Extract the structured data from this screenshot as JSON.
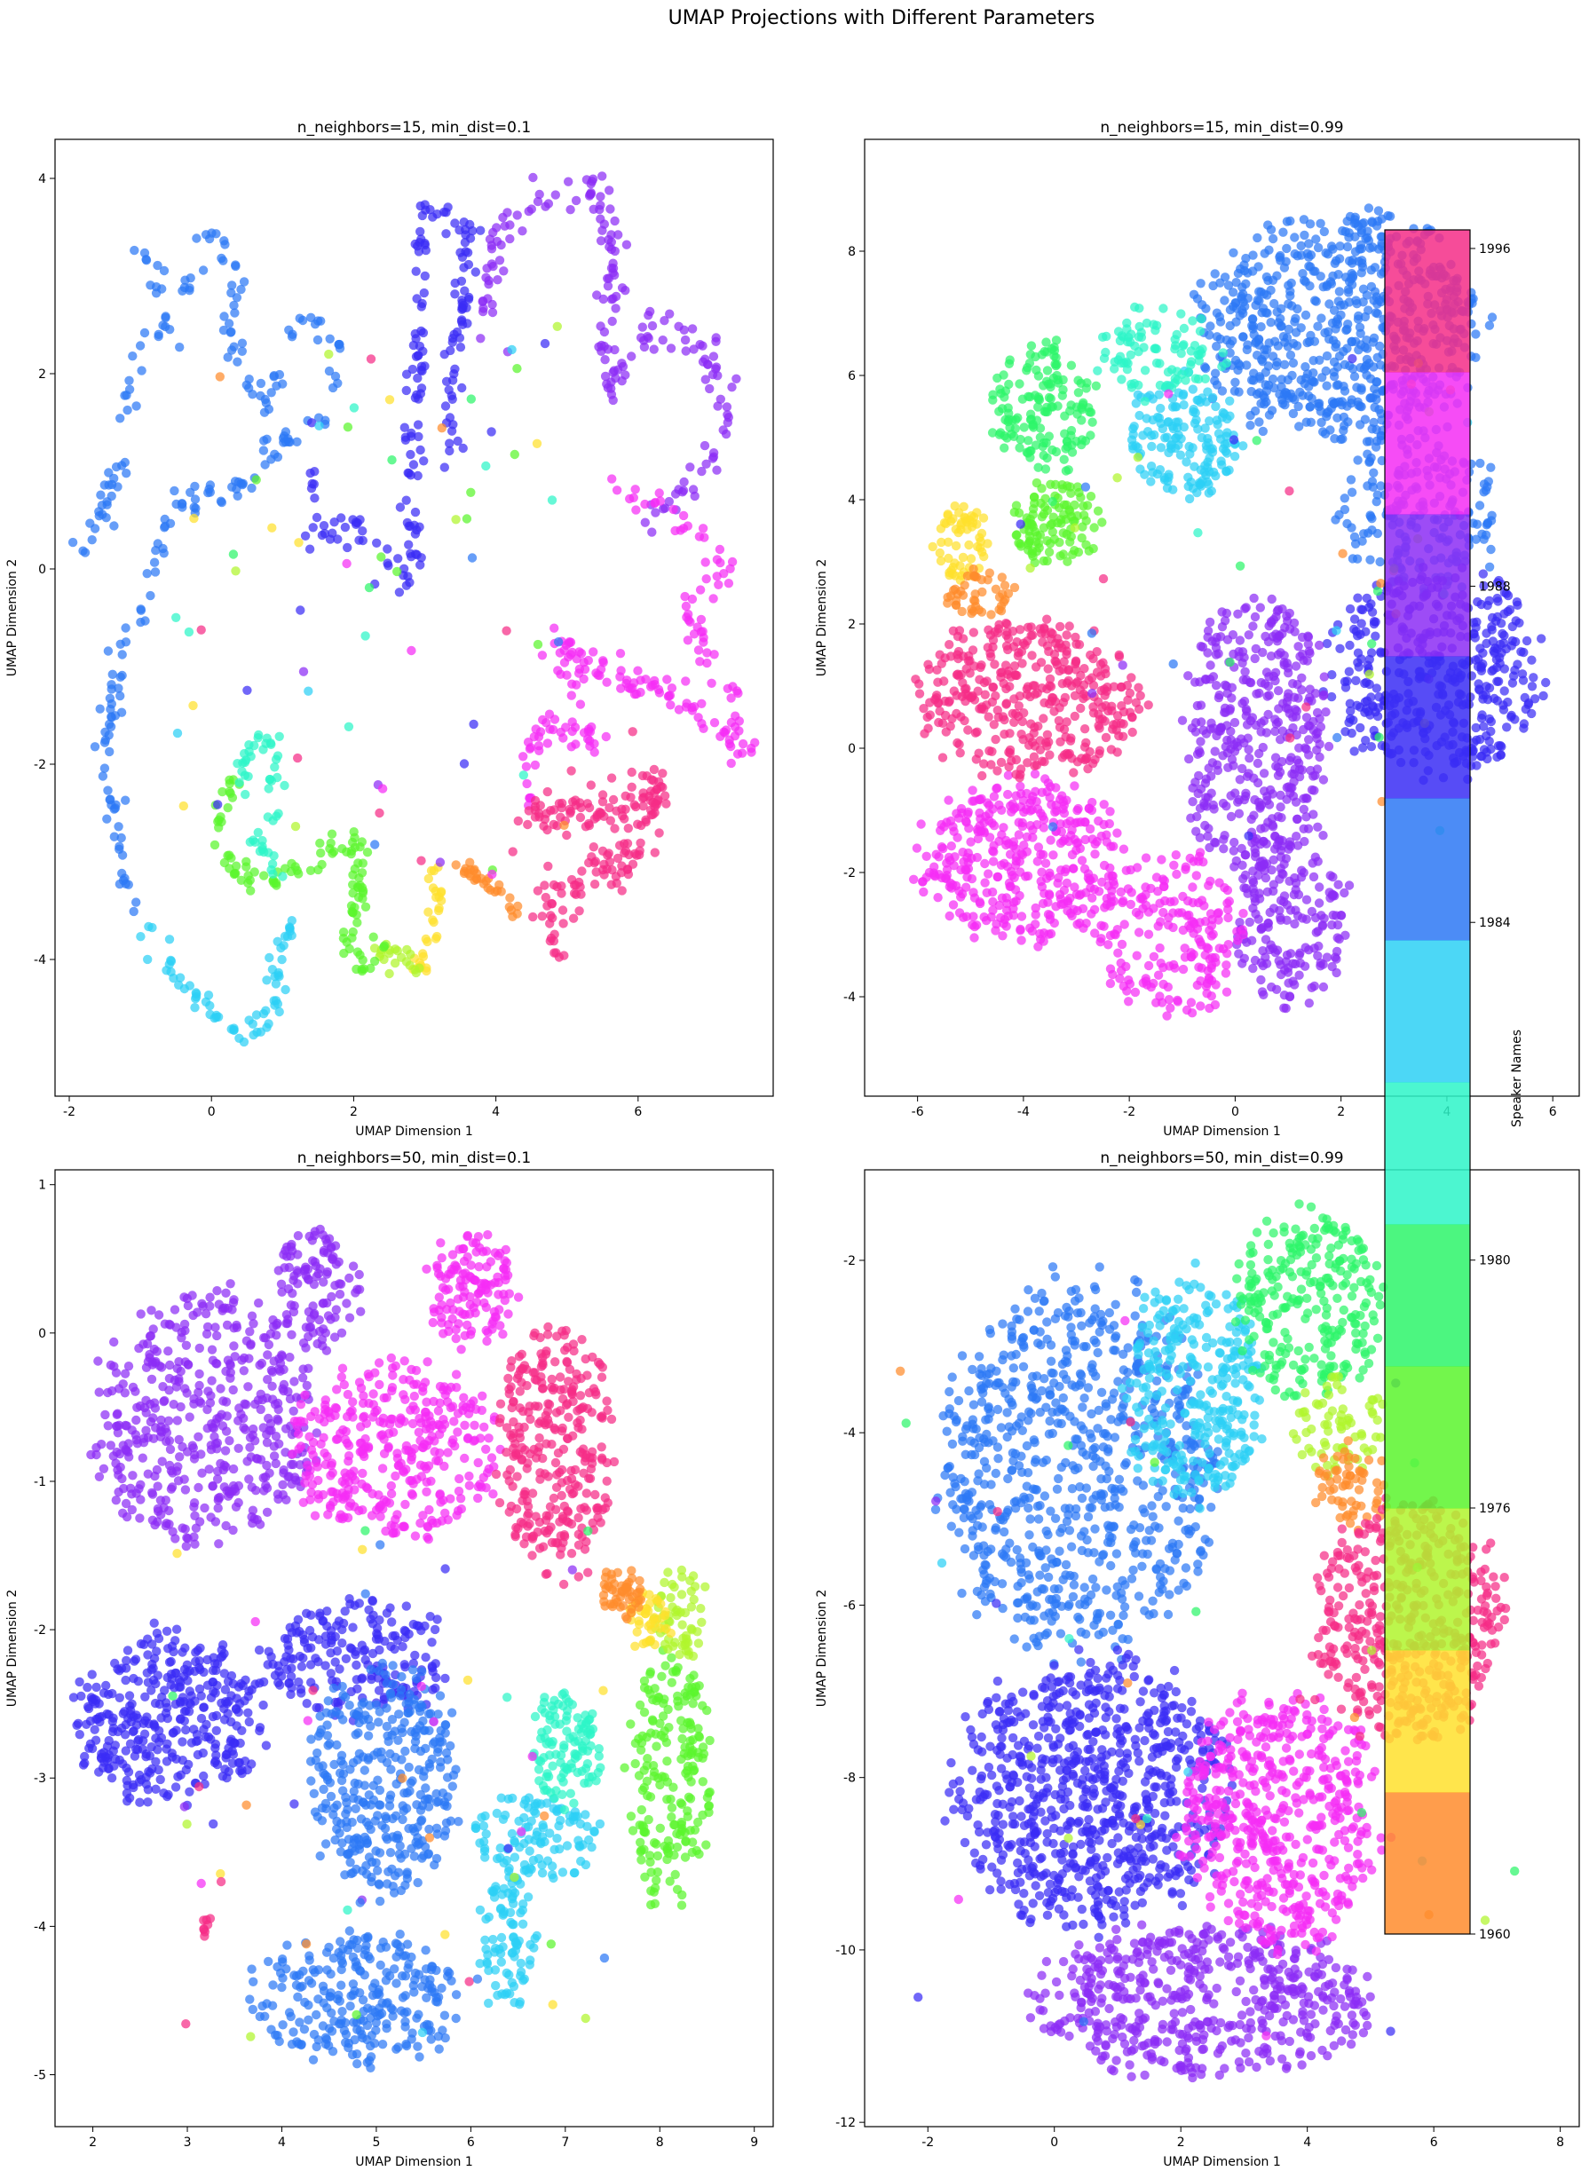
{
  "figure_title": "UMAP Projections with Different Parameters",
  "colors": {
    "c1960": "#ff8c2d",
    "c1964": "#ffe02d",
    "c1968": "#b0f52d",
    "c1972": "#5af52d",
    "c1976": "#2df56a",
    "c1980": "#2df5c8",
    "c1984": "#2dd0f5",
    "c1986": "#2d78f5",
    "c1988": "#3a2df5",
    "c1990": "#8c2df5",
    "c1994": "#f52df5",
    "c1998": "#f52d87"
  },
  "colorbar": {
    "label": "Speaker Names",
    "bins": [
      "#ff8c2d",
      "#ffe02d",
      "#b0f52d",
      "#5af52d",
      "#2df56a",
      "#2df5c8",
      "#2dd0f5",
      "#2d78f5",
      "#3a2df5",
      "#8c2df5",
      "#f52df5",
      "#f52d87"
    ],
    "ticks": [
      {
        "label": "1960",
        "frac": 0.0
      },
      {
        "label": "1976",
        "frac": 0.275
      },
      {
        "label": "1980",
        "frac": 0.435
      },
      {
        "label": "1984",
        "frac": 0.653
      },
      {
        "label": "1988",
        "frac": 0.87
      },
      {
        "label": "1996",
        "frac": 1.088
      }
    ]
  },
  "chart_data": [
    {
      "type": "scatter",
      "title": "n_neighbors=15, min_dist=0.1",
      "xlabel": "UMAP Dimension 1",
      "ylabel": "UMAP Dimension 2",
      "xlim": [
        -2.2,
        7.9
      ],
      "ylim": [
        -5.4,
        4.4
      ],
      "xticks": [
        -2,
        0,
        2,
        4,
        6
      ],
      "yticks": [
        -4,
        -2,
        0,
        2,
        4
      ],
      "clusters": [
        {
          "name": "c1986",
          "path": [
            [
              -1.8,
              0.2
            ],
            [
              -1.5,
              0.6
            ],
            [
              -1.1,
              1.4
            ],
            [
              -1.2,
              2.0
            ],
            [
              -0.6,
              2.6
            ],
            [
              -1.0,
              3.2
            ],
            [
              -0.3,
              2.9
            ],
            [
              0.0,
              3.5
            ],
            [
              0.4,
              3.0
            ],
            [
              0.2,
              2.4
            ],
            [
              0.8,
              1.6
            ],
            [
              1.2,
              2.6
            ],
            [
              1.8,
              2.4
            ],
            [
              1.6,
              1.5
            ],
            [
              1.0,
              1.3
            ],
            [
              0.6,
              0.9
            ],
            [
              -0.6,
              0.6
            ],
            [
              -0.9,
              -0.3
            ],
            [
              -1.3,
              -0.8
            ],
            [
              -1.5,
              -2.0
            ],
            [
              -1.2,
              -3.2
            ],
            [
              -0.9,
              -3.7
            ]
          ],
          "spread": 0.07,
          "n": 240
        },
        {
          "name": "c1984",
          "path": [
            [
              -0.9,
              -3.7
            ],
            [
              -0.6,
              -4.1
            ],
            [
              0.0,
              -4.5
            ],
            [
              0.4,
              -4.8
            ],
            [
              0.9,
              -4.6
            ],
            [
              0.9,
              -4.1
            ],
            [
              1.1,
              -3.6
            ]
          ],
          "spread": 0.07,
          "n": 70
        },
        {
          "name": "c1988",
          "path": [
            [
              1.5,
              1.0
            ],
            [
              1.4,
              0.3
            ],
            [
              2.0,
              0.5
            ],
            [
              2.5,
              0.0
            ],
            [
              2.8,
              -0.2
            ],
            [
              2.8,
              0.9
            ],
            [
              2.9,
              1.9
            ],
            [
              3.0,
              3.7
            ],
            [
              3.6,
              3.5
            ],
            [
              3.5,
              2.6
            ],
            [
              3.3,
              1.8
            ],
            [
              3.4,
              1.0
            ]
          ],
          "spread": 0.08,
          "n": 180
        },
        {
          "name": "c1990",
          "path": [
            [
              3.9,
              2.5
            ],
            [
              4.0,
              3.5
            ],
            [
              4.5,
              3.8
            ],
            [
              5.4,
              3.9
            ],
            [
              5.7,
              3.2
            ],
            [
              5.5,
              2.4
            ],
            [
              5.6,
              1.8
            ],
            [
              6.2,
              2.6
            ],
            [
              7.0,
              2.2
            ],
            [
              7.2,
              1.5
            ],
            [
              6.8,
              0.8
            ],
            [
              6.0,
              0.5
            ]
          ],
          "spread": 0.08,
          "n": 180
        },
        {
          "name": "c1994",
          "path": [
            [
              5.7,
              0.8
            ],
            [
              6.5,
              0.6
            ],
            [
              7.3,
              0.0
            ],
            [
              6.7,
              -0.4
            ],
            [
              7.1,
              -1.0
            ],
            [
              7.4,
              -1.5
            ],
            [
              7.5,
              -2.0
            ],
            [
              6.8,
              -1.4
            ],
            [
              6.0,
              -1.2
            ],
            [
              5.4,
              -1.0
            ],
            [
              4.8,
              -0.7
            ],
            [
              5.4,
              -1.8
            ],
            [
              4.6,
              -1.6
            ],
            [
              4.5,
              -2.4
            ]
          ],
          "spread": 0.08,
          "n": 200
        },
        {
          "name": "c1998",
          "path": [
            [
              4.4,
              -2.6
            ],
            [
              5.0,
              -2.5
            ],
            [
              5.8,
              -2.4
            ],
            [
              6.3,
              -2.2
            ],
            [
              5.9,
              -2.9
            ],
            [
              5.3,
              -3.1
            ],
            [
              4.8,
              -3.3
            ],
            [
              4.7,
              -3.7
            ],
            [
              5.0,
              -4.0
            ]
          ],
          "spread": 0.12,
          "n": 180
        },
        {
          "name": "c1960",
          "path": [
            [
              3.5,
              -3.0
            ],
            [
              3.8,
              -3.2
            ],
            [
              4.1,
              -3.3
            ],
            [
              4.3,
              -3.5
            ]
          ],
          "spread": 0.06,
          "n": 30
        },
        {
          "name": "c1964",
          "path": [
            [
              3.1,
              -3.0
            ],
            [
              3.2,
              -3.4
            ],
            [
              3.1,
              -3.8
            ],
            [
              2.9,
              -4.1
            ]
          ],
          "spread": 0.05,
          "n": 30
        },
        {
          "name": "c1968",
          "path": [
            [
              2.3,
              -3.9
            ],
            [
              2.7,
              -4.0
            ],
            [
              2.9,
              -4.1
            ]
          ],
          "spread": 0.06,
          "n": 20
        },
        {
          "name": "c1972",
          "path": [
            [
              0.4,
              -2.1
            ],
            [
              0.1,
              -2.5
            ],
            [
              0.2,
              -3.0
            ],
            [
              0.7,
              -3.2
            ],
            [
              1.3,
              -3.1
            ],
            [
              2.0,
              -2.7
            ],
            [
              2.1,
              -3.2
            ],
            [
              1.9,
              -3.9
            ],
            [
              2.1,
              -4.1
            ],
            [
              2.4,
              -3.8
            ]
          ],
          "spread": 0.07,
          "n": 110
        },
        {
          "name": "c1980",
          "path": [
            [
              0.4,
              -2.3
            ],
            [
              0.6,
              -1.7
            ],
            [
              0.9,
              -1.8
            ],
            [
              0.9,
              -2.4
            ],
            [
              0.6,
              -2.8
            ],
            [
              1.0,
              -3.1
            ]
          ],
          "spread": 0.06,
          "n": 50
        }
      ],
      "outliers": {
        "n": 70,
        "box": [
          -0.5,
          5.0,
          -3.3,
          2.8
        ]
      }
    },
    {
      "type": "scatter",
      "title": "n_neighbors=15, min_dist=0.99",
      "xlabel": "UMAP Dimension 1",
      "ylabel": "UMAP Dimension 2",
      "xlim": [
        -7.0,
        6.5
      ],
      "ylim": [
        -5.6,
        9.8
      ],
      "xticks": [
        -6,
        -4,
        -2,
        0,
        2,
        4,
        6
      ],
      "yticks": [
        -4,
        -2,
        0,
        2,
        4,
        6,
        8
      ],
      "blobs": [
        {
          "name": "c1986",
          "cx": 2.0,
          "cy": 6.8,
          "rx": 2.7,
          "ry": 1.9,
          "n": 700
        },
        {
          "name": "c1986",
          "cx": 3.5,
          "cy": 3.8,
          "rx": 1.5,
          "ry": 1.4,
          "n": 200
        },
        {
          "name": "c1988",
          "cx": 3.8,
          "cy": 1.2,
          "rx": 2.1,
          "ry": 1.7,
          "n": 420
        },
        {
          "name": "c1990",
          "cx": 0.4,
          "cy": 0.2,
          "rx": 1.4,
          "ry": 2.4,
          "n": 400
        },
        {
          "name": "c1990",
          "cx": 1.1,
          "cy": -2.7,
          "rx": 1.1,
          "ry": 1.6,
          "n": 180
        },
        {
          "name": "c1994",
          "cx": -4.0,
          "cy": -1.8,
          "rx": 2.0,
          "ry": 1.3,
          "n": 380
        },
        {
          "name": "c1994",
          "cx": -1.2,
          "cy": -3.0,
          "rx": 1.4,
          "ry": 1.4,
          "n": 200
        },
        {
          "name": "c1998",
          "cx": -3.9,
          "cy": 0.8,
          "rx": 2.1,
          "ry": 1.3,
          "n": 380
        },
        {
          "name": "c1984",
          "cx": -1.0,
          "cy": 5.0,
          "rx": 1.1,
          "ry": 1.0,
          "n": 160
        },
        {
          "name": "c1980",
          "cx": -1.4,
          "cy": 6.4,
          "rx": 1.3,
          "ry": 0.7,
          "n": 90
        },
        {
          "name": "c1976",
          "cx": -3.6,
          "cy": 5.5,
          "rx": 1.0,
          "ry": 1.1,
          "n": 150
        },
        {
          "name": "c1972",
          "cx": -3.4,
          "cy": 3.6,
          "rx": 0.9,
          "ry": 0.7,
          "n": 110
        },
        {
          "name": "c1964",
          "cx": -5.2,
          "cy": 3.3,
          "rx": 0.5,
          "ry": 0.7,
          "n": 60
        },
        {
          "name": "c1960",
          "cx": -4.8,
          "cy": 2.5,
          "rx": 0.7,
          "ry": 0.4,
          "n": 45
        }
      ],
      "outliers": {
        "n": 50,
        "box": [
          -4.5,
          4.5,
          -1.5,
          7.0
        ]
      }
    },
    {
      "type": "scatter",
      "title": "n_neighbors=50, min_dist=0.1",
      "xlabel": "UMAP Dimension 1",
      "ylabel": "UMAP Dimension 2",
      "xlim": [
        1.6,
        9.2
      ],
      "ylim": [
        -5.35,
        1.1
      ],
      "xticks": [
        2,
        3,
        4,
        5,
        6,
        7,
        8,
        9
      ],
      "yticks": [
        -5,
        -4,
        -3,
        -2,
        -1,
        0,
        1
      ],
      "blobs": [
        {
          "name": "c1990",
          "cx": 3.2,
          "cy": -0.6,
          "rx": 1.2,
          "ry": 0.9,
          "n": 460
        },
        {
          "name": "c1990",
          "cx": 4.4,
          "cy": 0.3,
          "rx": 0.5,
          "ry": 0.4,
          "n": 110
        },
        {
          "name": "c1994",
          "cx": 5.2,
          "cy": -0.8,
          "rx": 1.1,
          "ry": 0.6,
          "n": 360
        },
        {
          "name": "c1994",
          "cx": 6.0,
          "cy": 0.3,
          "rx": 0.5,
          "ry": 0.4,
          "n": 130
        },
        {
          "name": "c1998",
          "cx": 6.9,
          "cy": -0.8,
          "rx": 0.6,
          "ry": 0.9,
          "n": 300
        },
        {
          "name": "c1988",
          "cx": 2.8,
          "cy": -2.6,
          "rx": 1.0,
          "ry": 0.6,
          "n": 360
        },
        {
          "name": "c1988",
          "cx": 4.8,
          "cy": -2.2,
          "rx": 1.0,
          "ry": 0.4,
          "n": 200
        },
        {
          "name": "c1986",
          "cx": 5.1,
          "cy": -3.0,
          "rx": 0.8,
          "ry": 0.8,
          "n": 340
        },
        {
          "name": "c1986",
          "cx": 4.8,
          "cy": -4.5,
          "rx": 1.1,
          "ry": 0.45,
          "n": 260
        },
        {
          "name": "c1984",
          "cx": 6.4,
          "cy": -4.1,
          "rx": 0.3,
          "ry": 0.5,
          "n": 90
        },
        {
          "name": "c1984",
          "cx": 6.7,
          "cy": -3.4,
          "rx": 0.7,
          "ry": 0.3,
          "n": 110
        },
        {
          "name": "c1980",
          "cx": 7.0,
          "cy": -2.8,
          "rx": 0.4,
          "ry": 0.4,
          "n": 110
        },
        {
          "name": "c1972",
          "cx": 8.1,
          "cy": -3.0,
          "rx": 0.45,
          "ry": 0.9,
          "n": 200
        },
        {
          "name": "c1968",
          "cx": 8.2,
          "cy": -1.9,
          "rx": 0.35,
          "ry": 0.3,
          "n": 60
        },
        {
          "name": "c1964",
          "cx": 7.9,
          "cy": -1.95,
          "rx": 0.25,
          "ry": 0.2,
          "n": 40
        },
        {
          "name": "c1960",
          "cx": 7.6,
          "cy": -1.75,
          "rx": 0.25,
          "ry": 0.18,
          "n": 50
        },
        {
          "name": "c1998",
          "cx": 3.2,
          "cy": -4.0,
          "rx": 0.05,
          "ry": 0.1,
          "n": 8
        }
      ],
      "outliers": {
        "n": 50,
        "box": [
          2.5,
          7.5,
          -4.8,
          -1.3
        ]
      }
    },
    {
      "type": "scatter",
      "title": "n_neighbors=50, min_dist=0.99",
      "xlabel": "UMAP Dimension 1",
      "ylabel": "UMAP Dimension 2",
      "xlim": [
        -3.0,
        8.3
      ],
      "ylim": [
        -12.05,
        -0.95
      ],
      "xticks": [
        -2,
        0,
        2,
        4,
        6,
        8
      ],
      "yticks": [
        -12,
        -10,
        -8,
        -6,
        -4,
        -2
      ],
      "blobs": [
        {
          "name": "c1986",
          "cx": 0.4,
          "cy": -4.4,
          "rx": 2.2,
          "ry": 2.2,
          "n": 760
        },
        {
          "name": "c1984",
          "cx": 2.2,
          "cy": -3.5,
          "rx": 1.1,
          "ry": 1.4,
          "n": 300
        },
        {
          "name": "c1976",
          "cx": 4.0,
          "cy": -2.5,
          "rx": 1.2,
          "ry": 1.1,
          "n": 260
        },
        {
          "name": "c1968",
          "cx": 4.5,
          "cy": -3.9,
          "rx": 0.7,
          "ry": 0.6,
          "n": 70
        },
        {
          "name": "c1960",
          "cx": 4.7,
          "cy": -4.6,
          "rx": 0.6,
          "ry": 0.5,
          "n": 60
        },
        {
          "name": "c1988",
          "cx": 0.6,
          "cy": -8.2,
          "rx": 2.2,
          "ry": 1.6,
          "n": 760
        },
        {
          "name": "c1990",
          "cx": 2.4,
          "cy": -10.6,
          "rx": 2.7,
          "ry": 0.9,
          "n": 520
        },
        {
          "name": "c1994",
          "cx": 3.6,
          "cy": -8.5,
          "rx": 1.6,
          "ry": 1.5,
          "n": 520
        },
        {
          "name": "c1998",
          "cx": 5.6,
          "cy": -6.2,
          "rx": 1.5,
          "ry": 1.4,
          "n": 460
        }
      ],
      "outliers": {
        "n": 40,
        "box": [
          -2.5,
          7.5,
          -11.0,
          -2.0
        ]
      }
    }
  ]
}
